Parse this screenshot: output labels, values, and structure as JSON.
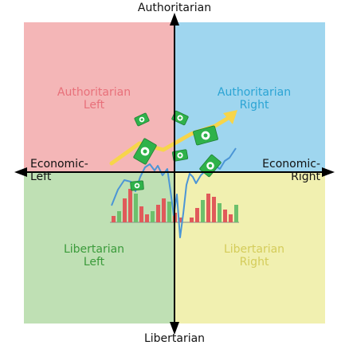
{
  "axes": {
    "top": "Authoritarian",
    "bottom": "Libertarian",
    "left_line1": "Economic-",
    "left_line2": "Left",
    "right_line1": "Economic-",
    "right_line2": "Right"
  },
  "quadrants": {
    "top_left": {
      "line1": "Authoritarian",
      "line2": "Left",
      "fill": "#f4b6b7",
      "text_color": "#e8707a"
    },
    "top_right": {
      "line1": "Authoritarian",
      "line2": "Right",
      "fill": "#9fd6ef",
      "text_color": "#2ba4d4"
    },
    "bottom_left": {
      "line1": "Libertarian",
      "line2": "Left",
      "fill": "#bfe0b4",
      "text_color": "#3a9a3a"
    },
    "bottom_right": {
      "line1": "Libertarian",
      "line2": "Right",
      "fill": "#f1f0b0",
      "text_color": "#d4cc5a"
    }
  },
  "icons": {
    "money": "dollar-bill-icon",
    "trend": "trend-arrow-icon",
    "bars": "bar-chart-icon",
    "line": "stock-line-icon"
  },
  "colors": {
    "money_green": "#2fb24a",
    "arrow_yellow": "#f7d54a",
    "bar_red": "#e05a5a",
    "bar_green": "#6cc06c",
    "line_blue": "#4b95d6"
  }
}
